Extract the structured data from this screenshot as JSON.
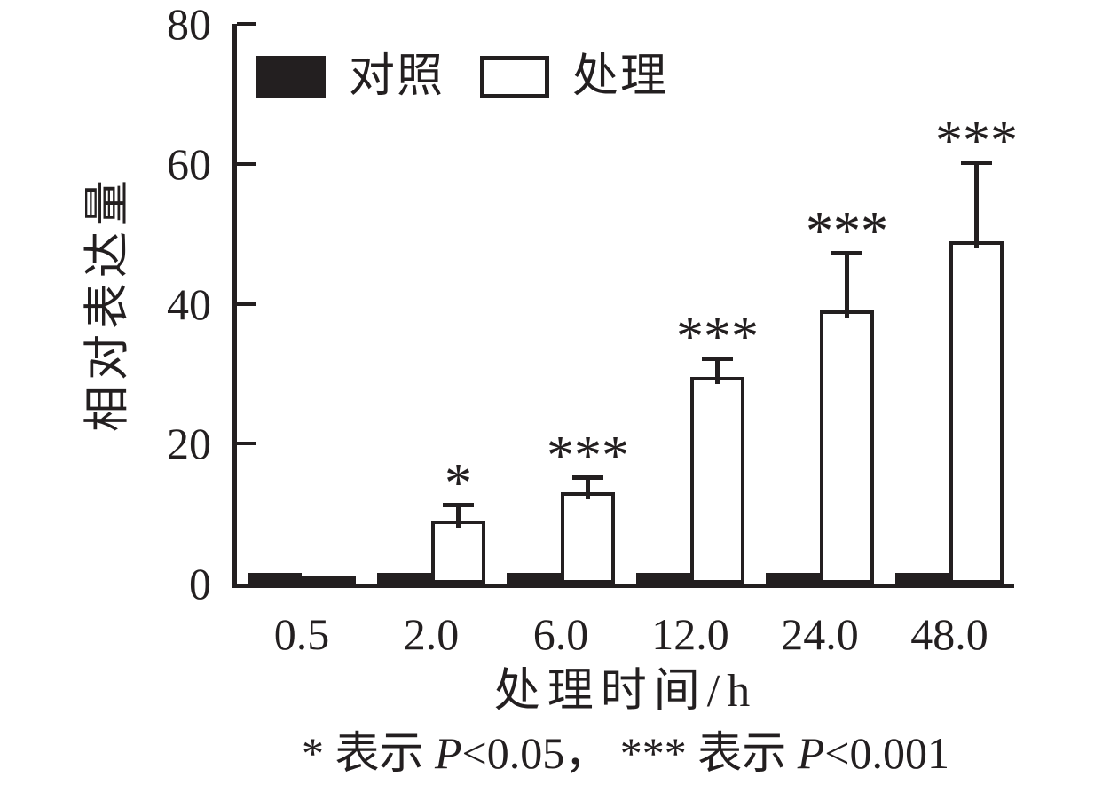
{
  "chart_data": {
    "type": "bar",
    "title": "",
    "categories": [
      "0.5",
      "2.0",
      "6.0",
      "12.0",
      "24.0",
      "48.0"
    ],
    "series": [
      {
        "name": "对照",
        "role": "control",
        "style": "filled",
        "fill": "#231f20",
        "values": [
          1.5,
          1.5,
          1.5,
          1.5,
          1.5,
          1.5
        ],
        "errors_plus": [
          0,
          0,
          0,
          0,
          0,
          0
        ],
        "significance": [
          "",
          "",
          "",
          "",
          "",
          ""
        ]
      },
      {
        "name": "处理",
        "role": "treatment",
        "style": "outlined",
        "fill": "#ffffff",
        "values": [
          1.0,
          9.0,
          13.0,
          29.5,
          39.0,
          49.0
        ],
        "errors_plus": [
          0,
          2.5,
          2.5,
          3.0,
          8.5,
          11.5
        ],
        "significance": [
          "",
          "*",
          "***",
          "***",
          "***",
          "***"
        ]
      }
    ],
    "xlabel": "处理时间/h",
    "ylabel": "相对表达量",
    "ylim": [
      0,
      80
    ],
    "yticks": [
      0,
      20,
      40,
      60,
      80
    ],
    "grid": false,
    "legend_position": "top-left-inside",
    "footnote": "* 表示 P<0.05， *** 表示 P<0.001",
    "footnote_parts": [
      {
        "text": "* 表示 ",
        "italic": false
      },
      {
        "text": "P",
        "italic": true
      },
      {
        "text": "<0.05， *** 表示 ",
        "italic": false
      },
      {
        "text": "P",
        "italic": true
      },
      {
        "text": "<0.001",
        "italic": false
      }
    ]
  },
  "colors": {
    "ink": "#231f20",
    "background": "#ffffff"
  }
}
